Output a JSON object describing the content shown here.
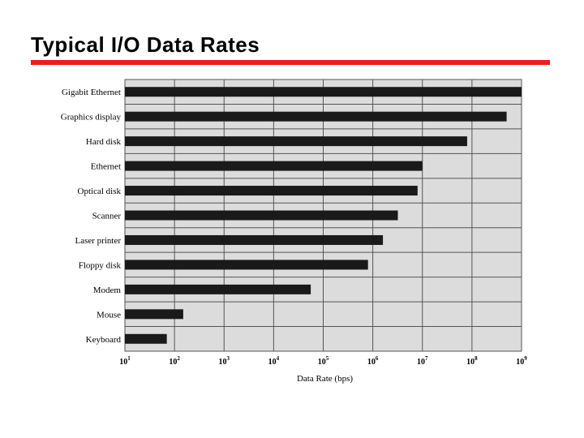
{
  "slide": {
    "title": "Typical I/O Data Rates",
    "accent_color": "#ee1c1c"
  },
  "chart_data": {
    "type": "bar",
    "orientation": "horizontal",
    "title": "",
    "xlabel": "Data Rate (bps)",
    "ylabel": "",
    "x_scale": "log",
    "xlim": [
      10,
      1000000000
    ],
    "grid": true,
    "legend": "none",
    "plot_background": "#dcdcdc",
    "bar_color": "#1a1a1a",
    "categories": [
      "Gigabit Ethernet",
      "Graphics display",
      "Hard disk",
      "Ethernet",
      "Optical disk",
      "Scanner",
      "Laser printer",
      "Floppy disk",
      "Modem",
      "Mouse",
      "Keyboard"
    ],
    "values": [
      1000000000,
      500000000,
      80000000,
      10000000,
      8000000,
      3200000,
      1600000,
      800000,
      56000,
      150,
      70
    ],
    "x_ticks": [
      {
        "base": "10",
        "exp": "1",
        "value": 10
      },
      {
        "base": "10",
        "exp": "2",
        "value": 100
      },
      {
        "base": "10",
        "exp": "3",
        "value": 1000
      },
      {
        "base": "10",
        "exp": "4",
        "value": 10000
      },
      {
        "base": "10",
        "exp": "5",
        "value": 100000
      },
      {
        "base": "10",
        "exp": "6",
        "value": 1000000
      },
      {
        "base": "10",
        "exp": "7",
        "value": 10000000
      },
      {
        "base": "10",
        "exp": "8",
        "value": 100000000
      },
      {
        "base": "10",
        "exp": "9",
        "value": 1000000000
      }
    ]
  }
}
